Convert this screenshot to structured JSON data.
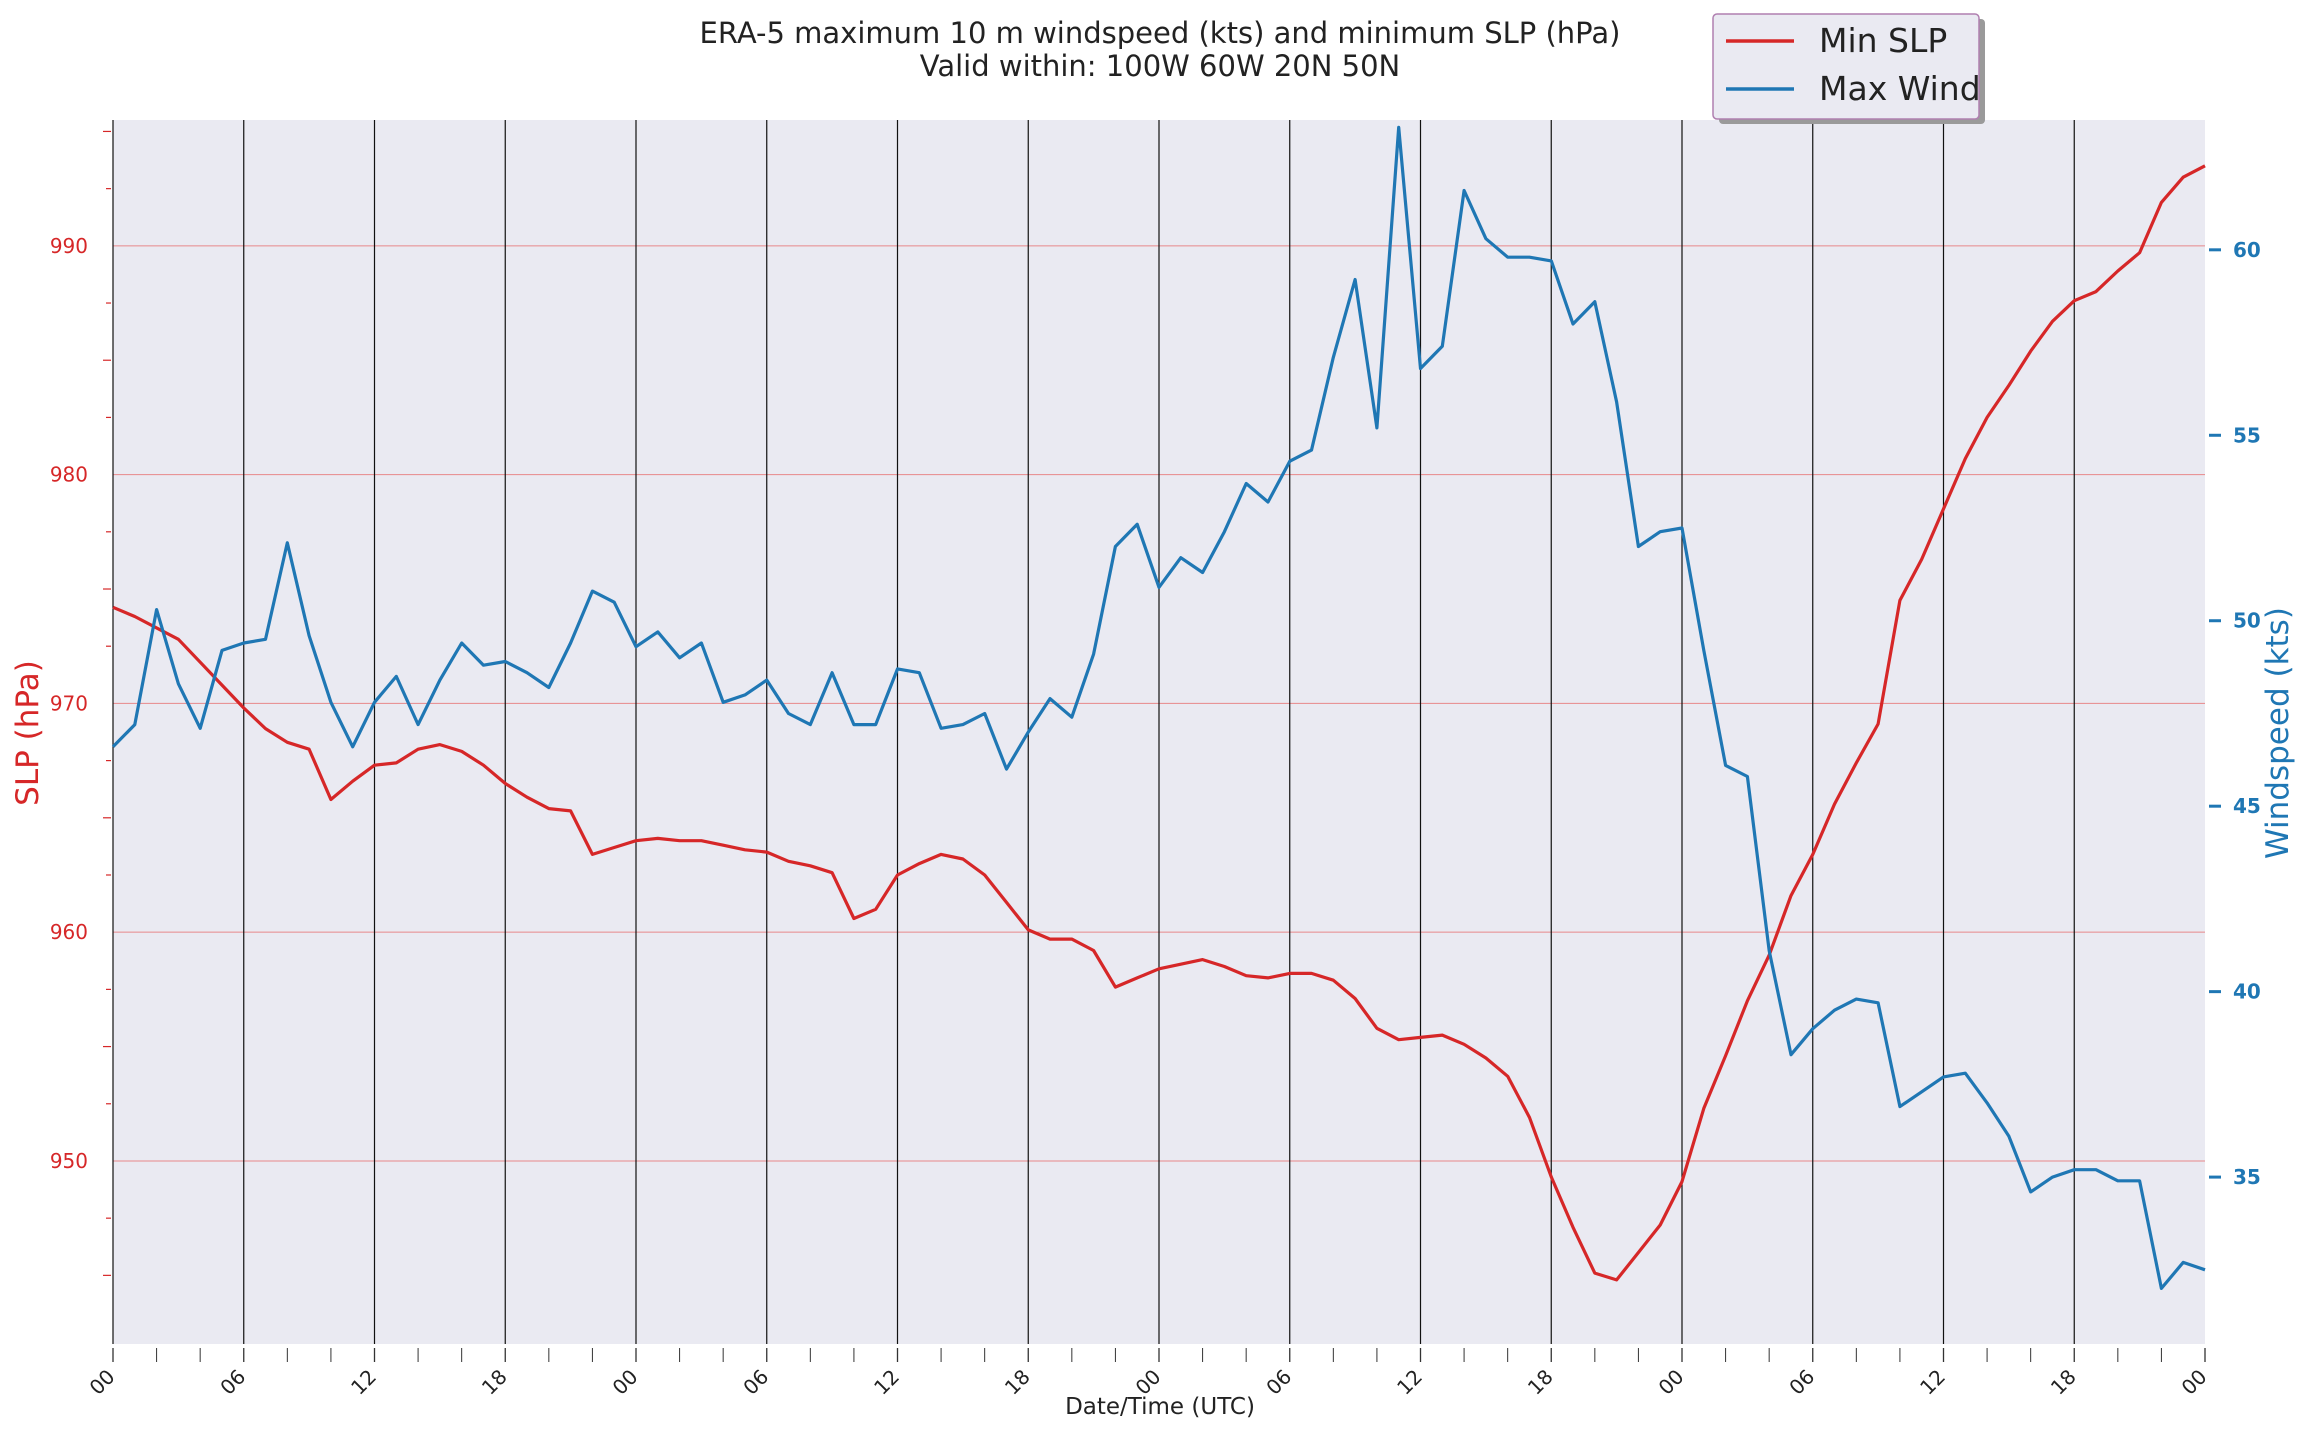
{
  "chart_data": {
    "type": "line",
    "title": "ERA-5 maximum 10 m windspeed (kts) and minimum SLP (hPa)",
    "subtitle": "Valid within: 100W 60W 20N 50N",
    "xlabel": "Date/Time (UTC)",
    "ylabel_left": "SLP (hPa)",
    "ylabel_right": "Windspeed (kts)",
    "x_ticks": [
      "00",
      "06",
      "12",
      "18",
      "00",
      "06",
      "12",
      "18",
      "00",
      "06",
      "12",
      "18",
      "00",
      "06",
      "12",
      "18",
      "00"
    ],
    "x_hours_per_step": 1,
    "x_range": [
      0,
      96
    ],
    "ylim_left": [
      942,
      995.5
    ],
    "yticks_left": [
      950,
      960,
      970,
      980,
      990
    ],
    "ylim_right": [
      30.5,
      63.5
    ],
    "yticks_right": [
      35,
      40,
      45,
      50,
      55,
      60
    ],
    "grid": "vertical black lines every 6 hours; horizontal red lines at SLP ticks",
    "legend_position": "top-right",
    "colors": {
      "slp": "#d62728",
      "wind": "#1f77b4",
      "plot_bg": "#eaeaf2"
    },
    "series": [
      {
        "name": "Min SLP",
        "axis": "left",
        "color": "#d62728",
        "values": [
          974.2,
          973.8,
          973.3,
          972.8,
          971.8,
          970.8,
          969.8,
          968.9,
          968.3,
          968.0,
          965.8,
          966.6,
          967.3,
          967.4,
          968.0,
          968.2,
          967.9,
          967.3,
          966.5,
          965.9,
          965.4,
          965.3,
          963.4,
          963.7,
          964.0,
          964.1,
          964.0,
          964.0,
          963.8,
          963.6,
          963.5,
          963.1,
          962.9,
          962.6,
          960.6,
          961.0,
          962.5,
          963.0,
          963.4,
          963.2,
          962.5,
          961.3,
          960.1,
          959.7,
          959.7,
          959.2,
          957.6,
          958.0,
          958.4,
          958.6,
          958.8,
          958.5,
          958.1,
          958.0,
          958.2,
          958.2,
          957.9,
          957.1,
          955.8,
          955.3,
          955.4,
          955.5,
          955.1,
          954.5,
          953.7,
          951.9,
          949.3,
          947.1,
          945.1,
          944.8,
          946.0,
          947.2,
          949.1,
          952.3,
          954.6,
          957.0,
          959.0,
          961.6,
          963.4,
          965.6,
          967.4,
          969.1,
          974.5,
          976.3,
          978.5,
          980.7,
          982.5,
          983.9,
          985.4,
          986.7,
          987.6,
          988.0,
          988.9,
          989.7,
          991.9,
          993.0,
          993.5
        ]
      },
      {
        "name": "Max Wind",
        "axis": "right",
        "color": "#1f77b4",
        "values": [
          46.6,
          47.2,
          50.3,
          48.3,
          47.1,
          49.2,
          49.4,
          49.5,
          52.1,
          49.6,
          47.8,
          46.6,
          47.8,
          48.5,
          47.2,
          48.4,
          49.4,
          48.8,
          48.9,
          48.6,
          48.2,
          49.4,
          50.8,
          50.5,
          49.3,
          49.7,
          49.0,
          49.4,
          47.8,
          48.0,
          48.4,
          47.5,
          47.2,
          48.6,
          47.2,
          47.2,
          48.7,
          48.6,
          47.1,
          47.2,
          47.5,
          46.0,
          47.0,
          47.9,
          47.4,
          49.1,
          52.0,
          52.6,
          50.9,
          51.7,
          51.3,
          52.4,
          53.7,
          53.2,
          54.3,
          54.6,
          57.1,
          59.2,
          55.2,
          63.3,
          56.8,
          57.4,
          61.6,
          60.3,
          59.8,
          59.8,
          59.7,
          58.0,
          58.6,
          55.9,
          52.0,
          52.4,
          52.5,
          49.2,
          46.1,
          45.8,
          41.1,
          38.3,
          39.0,
          39.5,
          39.8,
          39.7,
          36.9,
          37.3,
          37.7,
          37.8,
          37.0,
          36.1,
          34.6,
          35.0,
          35.2,
          35.2,
          34.9,
          34.9,
          32.0,
          32.7,
          32.5
        ]
      }
    ],
    "legend": [
      {
        "label": "Min SLP",
        "color": "#d62728"
      },
      {
        "label": "Max Wind",
        "color": "#1f77b4"
      }
    ]
  }
}
